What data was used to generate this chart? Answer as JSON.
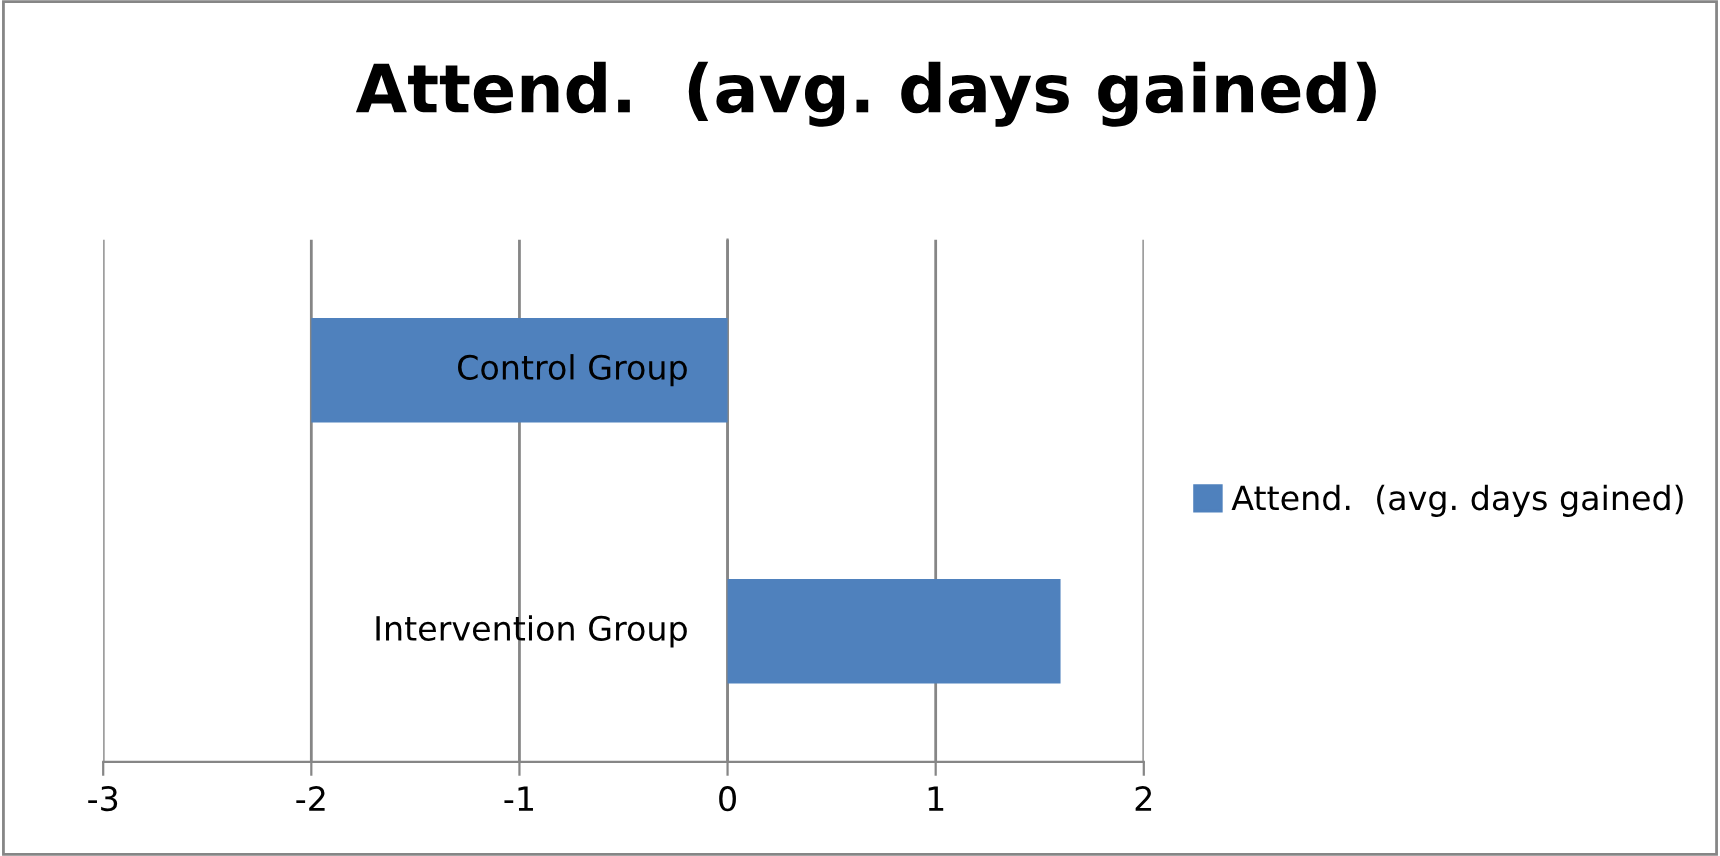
{
  "chart_data": {
    "type": "bar",
    "orientation": "horizontal",
    "title": "Attend.  (avg. days gained)",
    "categories": [
      "Control Group",
      "Intervention Group"
    ],
    "series": [
      {
        "name": "Attend.  (avg. days gained)",
        "color": "#4f81bd",
        "values": [
          -2,
          1.6
        ]
      }
    ],
    "xlim": [
      -3,
      2
    ],
    "xticks": [
      -3,
      -2,
      -1,
      0,
      1,
      2
    ],
    "grid": "x",
    "legend": "right"
  }
}
